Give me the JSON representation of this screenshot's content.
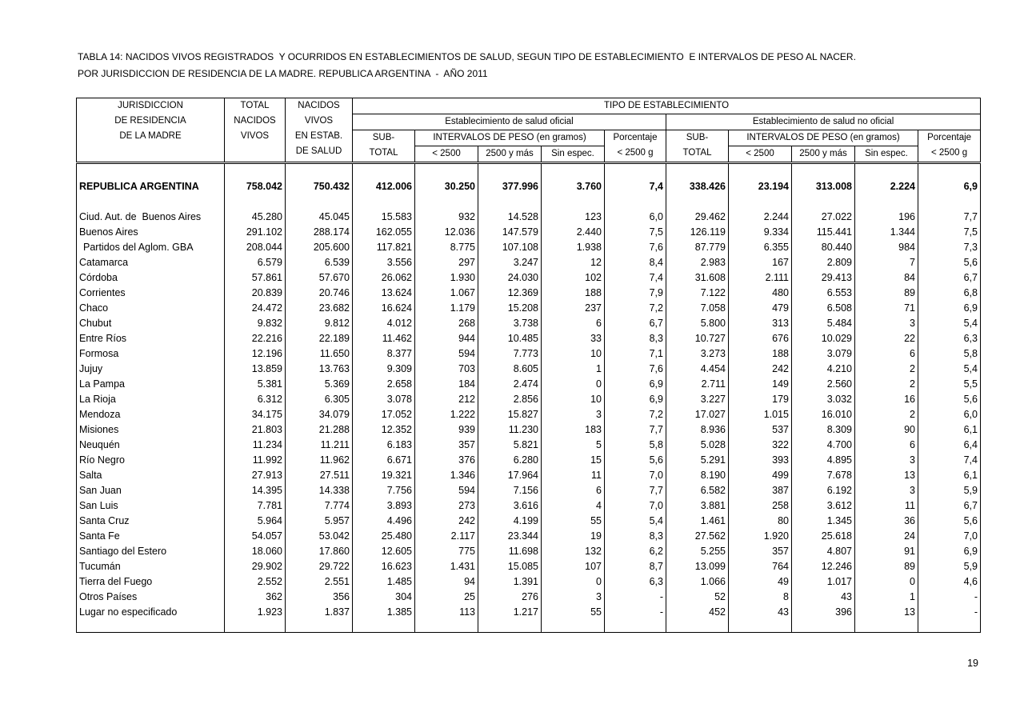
{
  "title": {
    "line1": "TABLA 14: NACIDOS VIVOS REGISTRADOS  Y OCURRIDOS EN ESTABLECIMIENTOS DE SALUD, SEGUN TIPO DE ESTABLECIMIENTO  E INTERVALOS DE PESO AL NACER.",
    "line2": "POR JURISDICCION DE RESIDENCIA DE LA MADRE. REPUBLICA ARGENTINA  -  AÑO 2011"
  },
  "page": {
    "number": "19"
  },
  "table": {
    "header": {
      "col_jurisdiccion": [
        "JURISDICCION",
        "DE RESIDENCIA",
        "DE LA MADRE"
      ],
      "col_total_nacidos_vivos": [
        "TOTAL",
        "NACIDOS",
        "VIVOS"
      ],
      "col_nacidos_en_estab": [
        "NACIDOS",
        "VIVOS",
        "EN ESTAB.",
        "DE SALUD"
      ],
      "tipo_establecimiento": "TIPO DE ESTABLECIMIENTO",
      "grupo_oficial": "Establecimiento de salud oficial",
      "grupo_no_oficial": "Establecimiento de salud no oficial",
      "sub_total": [
        "SUB-",
        "TOTAL"
      ],
      "intervalos_peso": "INTERVALOS DE PESO (en gramos)",
      "porcentaje": [
        "Porcentaje",
        "< 2500 g"
      ],
      "peso_lt_2500": "< 2500",
      "peso_2500_y_mas": "2500 y más",
      "peso_sin_espec": "Sin espec."
    },
    "total_row": {
      "name": "REPUBLICA ARGENTINA",
      "values": [
        "758.042",
        "750.432",
        "412.006",
        "30.250",
        "377.996",
        "3.760",
        "7,4",
        "338.426",
        "23.194",
        "313.008",
        "2.224",
        "6,9"
      ]
    },
    "rows": [
      {
        "name": "Ciud. Aut. de  Buenos Aires",
        "indent": false,
        "values": [
          "45.280",
          "45.045",
          "15.583",
          "932",
          "14.528",
          "123",
          "6,0",
          "29.462",
          "2.244",
          "27.022",
          "196",
          "7,7"
        ]
      },
      {
        "name": "Buenos Aires",
        "indent": false,
        "values": [
          "291.102",
          "288.174",
          "162.055",
          "12.036",
          "147.579",
          "2.440",
          "7,5",
          "126.119",
          "9.334",
          "115.441",
          "1.344",
          "7,5"
        ]
      },
      {
        "name": "Partidos del Aglom. GBA",
        "indent": true,
        "values": [
          "208.044",
          "205.600",
          "117.821",
          "8.775",
          "107.108",
          "1.938",
          "7,6",
          "87.779",
          "6.355",
          "80.440",
          "984",
          "7,3"
        ]
      },
      {
        "name": "Catamarca",
        "indent": false,
        "values": [
          "6.579",
          "6.539",
          "3.556",
          "297",
          "3.247",
          "12",
          "8,4",
          "2.983",
          "167",
          "2.809",
          "7",
          "5,6"
        ]
      },
      {
        "name": "Córdoba",
        "indent": false,
        "values": [
          "57.861",
          "57.670",
          "26.062",
          "1.930",
          "24.030",
          "102",
          "7,4",
          "31.608",
          "2.111",
          "29.413",
          "84",
          "6,7"
        ]
      },
      {
        "name": "Corrientes",
        "indent": false,
        "values": [
          "20.839",
          "20.746",
          "13.624",
          "1.067",
          "12.369",
          "188",
          "7,9",
          "7.122",
          "480",
          "6.553",
          "89",
          "6,8"
        ]
      },
      {
        "name": "Chaco",
        "indent": false,
        "values": [
          "24.472",
          "23.682",
          "16.624",
          "1.179",
          "15.208",
          "237",
          "7,2",
          "7.058",
          "479",
          "6.508",
          "71",
          "6,9"
        ]
      },
      {
        "name": "Chubut",
        "indent": false,
        "values": [
          "9.832",
          "9.812",
          "4.012",
          "268",
          "3.738",
          "6",
          "6,7",
          "5.800",
          "313",
          "5.484",
          "3",
          "5,4"
        ]
      },
      {
        "name": "Entre Ríos",
        "indent": false,
        "values": [
          "22.216",
          "22.189",
          "11.462",
          "944",
          "10.485",
          "33",
          "8,3",
          "10.727",
          "676",
          "10.029",
          "22",
          "6,3"
        ]
      },
      {
        "name": "Formosa",
        "indent": false,
        "values": [
          "12.196",
          "11.650",
          "8.377",
          "594",
          "7.773",
          "10",
          "7,1",
          "3.273",
          "188",
          "3.079",
          "6",
          "5,8"
        ]
      },
      {
        "name": "Jujuy",
        "indent": false,
        "values": [
          "13.859",
          "13.763",
          "9.309",
          "703",
          "8.605",
          "1",
          "7,6",
          "4.454",
          "242",
          "4.210",
          "2",
          "5,4"
        ]
      },
      {
        "name": "La Pampa",
        "indent": false,
        "values": [
          "5.381",
          "5.369",
          "2.658",
          "184",
          "2.474",
          "0",
          "6,9",
          "2.711",
          "149",
          "2.560",
          "2",
          "5,5"
        ]
      },
      {
        "name": "La Rioja",
        "indent": false,
        "values": [
          "6.312",
          "6.305",
          "3.078",
          "212",
          "2.856",
          "10",
          "6,9",
          "3.227",
          "179",
          "3.032",
          "16",
          "5,6"
        ]
      },
      {
        "name": "Mendoza",
        "indent": false,
        "values": [
          "34.175",
          "34.079",
          "17.052",
          "1.222",
          "15.827",
          "3",
          "7,2",
          "17.027",
          "1.015",
          "16.010",
          "2",
          "6,0"
        ]
      },
      {
        "name": "Misiones",
        "indent": false,
        "values": [
          "21.803",
          "21.288",
          "12.352",
          "939",
          "11.230",
          "183",
          "7,7",
          "8.936",
          "537",
          "8.309",
          "90",
          "6,1"
        ]
      },
      {
        "name": "Neuquén",
        "indent": false,
        "values": [
          "11.234",
          "11.211",
          "6.183",
          "357",
          "5.821",
          "5",
          "5,8",
          "5.028",
          "322",
          "4.700",
          "6",
          "6,4"
        ]
      },
      {
        "name": "Río Negro",
        "indent": false,
        "values": [
          "11.992",
          "11.962",
          "6.671",
          "376",
          "6.280",
          "15",
          "5,6",
          "5.291",
          "393",
          "4.895",
          "3",
          "7,4"
        ]
      },
      {
        "name": "Salta",
        "indent": false,
        "values": [
          "27.913",
          "27.511",
          "19.321",
          "1.346",
          "17.964",
          "11",
          "7,0",
          "8.190",
          "499",
          "7.678",
          "13",
          "6,1"
        ]
      },
      {
        "name": "San Juan",
        "indent": false,
        "values": [
          "14.395",
          "14.338",
          "7.756",
          "594",
          "7.156",
          "6",
          "7,7",
          "6.582",
          "387",
          "6.192",
          "3",
          "5,9"
        ]
      },
      {
        "name": "San Luis",
        "indent": false,
        "values": [
          "7.781",
          "7.774",
          "3.893",
          "273",
          "3.616",
          "4",
          "7,0",
          "3.881",
          "258",
          "3.612",
          "11",
          "6,7"
        ]
      },
      {
        "name": "Santa Cruz",
        "indent": false,
        "values": [
          "5.964",
          "5.957",
          "4.496",
          "242",
          "4.199",
          "55",
          "5,4",
          "1.461",
          "80",
          "1.345",
          "36",
          "5,6"
        ]
      },
      {
        "name": "Santa Fe",
        "indent": false,
        "values": [
          "54.057",
          "53.042",
          "25.480",
          "2.117",
          "23.344",
          "19",
          "8,3",
          "27.562",
          "1.920",
          "25.618",
          "24",
          "7,0"
        ]
      },
      {
        "name": "Santiago del Estero",
        "indent": false,
        "values": [
          "18.060",
          "17.860",
          "12.605",
          "775",
          "11.698",
          "132",
          "6,2",
          "5.255",
          "357",
          "4.807",
          "91",
          "6,9"
        ]
      },
      {
        "name": "Tucumán",
        "indent": false,
        "values": [
          "29.902",
          "29.722",
          "16.623",
          "1.431",
          "15.085",
          "107",
          "8,7",
          "13.099",
          "764",
          "12.246",
          "89",
          "5,9"
        ]
      },
      {
        "name": "Tierra del Fuego",
        "indent": false,
        "values": [
          "2.552",
          "2.551",
          "1.485",
          "94",
          "1.391",
          "0",
          "6,3",
          "1.066",
          "49",
          "1.017",
          "0",
          "4,6"
        ]
      },
      {
        "name": "Otros Países",
        "indent": false,
        "values": [
          "362",
          "356",
          "304",
          "25",
          "276",
          "3",
          "-",
          "52",
          "8",
          "43",
          "1",
          "-"
        ]
      },
      {
        "name": "Lugar no especificado",
        "indent": false,
        "values": [
          "1.923",
          "1.837",
          "1.385",
          "113",
          "1.217",
          "55",
          "-",
          "452",
          "43",
          "396",
          "13",
          "-"
        ]
      }
    ]
  }
}
